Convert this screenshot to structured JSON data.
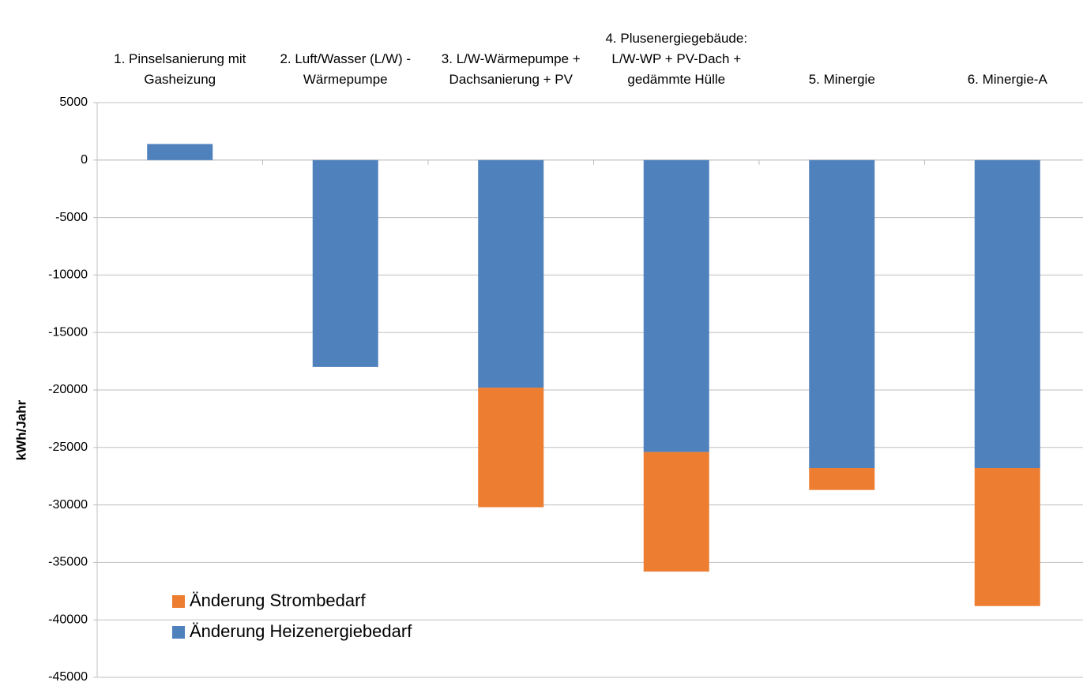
{
  "chart_data": {
    "type": "stacked_bar",
    "y_label": "kWh/Jahr",
    "categories": [
      "1. Pinselsanierung mit Gasheizung",
      "2. Luft/Wasser (L/W) - Wärmepumpe",
      "3. L/W-Wärmepumpe + Dachsanierung + PV",
      "4. Plusenergiegebäude: L/W-WP + PV-Dach + gedämmte Hülle",
      "5. Minergie",
      "6. Minergie-A"
    ],
    "series": [
      {
        "name": "Änderung Heizenergiebedarf",
        "color": "#4f81bd",
        "values": [
          1400,
          -18000,
          -19800,
          -25400,
          -26800,
          -26800
        ]
      },
      {
        "name": "Änderung Strombedarf",
        "color": "#ed7d31",
        "values": [
          0,
          0,
          -10400,
          -10400,
          -1900,
          -12000
        ]
      }
    ],
    "ylim": [
      -45000,
      5000
    ],
    "yticks": [
      5000,
      0,
      -5000,
      -10000,
      -15000,
      -20000,
      -25000,
      -30000,
      -35000,
      -40000,
      -45000
    ],
    "grid": true,
    "legend": "lower left"
  }
}
